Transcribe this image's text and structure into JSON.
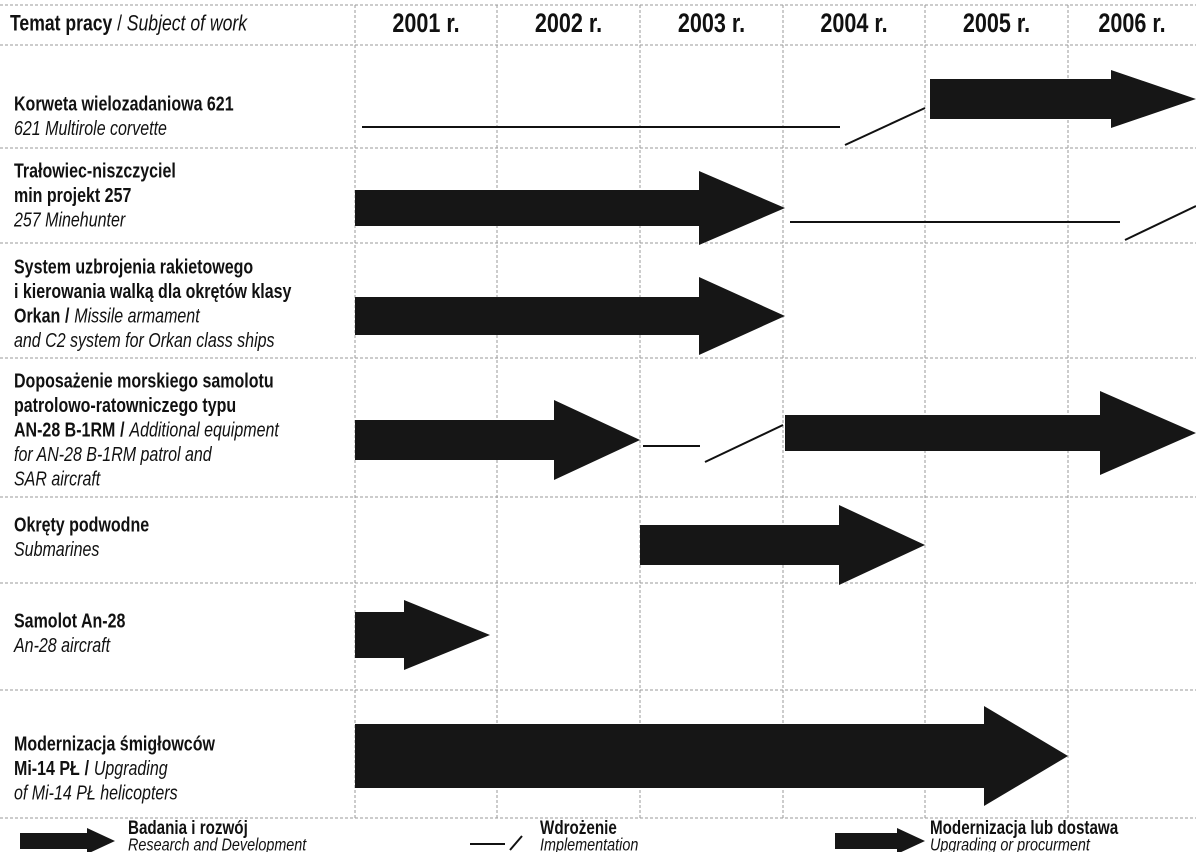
{
  "header": {
    "subject_pl": "Temat pracy",
    "separator": "/",
    "subject_en": "Subject of work",
    "years": [
      "2001 r.",
      "2002 r.",
      "2003 r.",
      "2004 r.",
      "2005 r.",
      "2006 r."
    ]
  },
  "rows": [
    {
      "title_pl": [
        "Korweta wielozadaniowa 621"
      ],
      "title_en": [
        "621 Multirole corvette"
      ]
    },
    {
      "title_pl": [
        "Trałowiec-niszczyciel",
        "min projekt 257"
      ],
      "title_en": [
        "257 Minehunter"
      ]
    },
    {
      "title_pl": [
        "System uzbrojenia rakietowego",
        "i kierowania walką dla okrętów klasy",
        "Orkan"
      ],
      "title_en": [
        "Missile armament",
        "and C2 system for Orkan class ships"
      ]
    },
    {
      "title_pl": [
        "Doposażenie morskiego samolotu",
        "patrolowo-ratowniczego typu",
        "AN-28 B-1RM"
      ],
      "title_en": [
        "Additional equipment",
        "for AN-28 B-1RM patrol and",
        "SAR aircraft"
      ]
    },
    {
      "title_pl": [
        "Okręty podwodne"
      ],
      "title_en": [
        "Submarines"
      ]
    },
    {
      "title_pl": [
        "Samolot An-28"
      ],
      "title_en": [
        "An-28 aircraft"
      ]
    },
    {
      "title_pl": [
        "Modernizacja śmigłowców",
        "Mi-14 PŁ"
      ],
      "title_en": [
        "Upgrading",
        "of Mi-14 PŁ helicopters"
      ]
    }
  ],
  "legend": [
    {
      "pl": "Badania i rozwój",
      "en": "Research and Development"
    },
    {
      "pl": "Wdrożenie",
      "en": "Implementation"
    },
    {
      "pl": "Modernizacja lub dostawa",
      "en": "Upgrading or procurment"
    }
  ]
}
